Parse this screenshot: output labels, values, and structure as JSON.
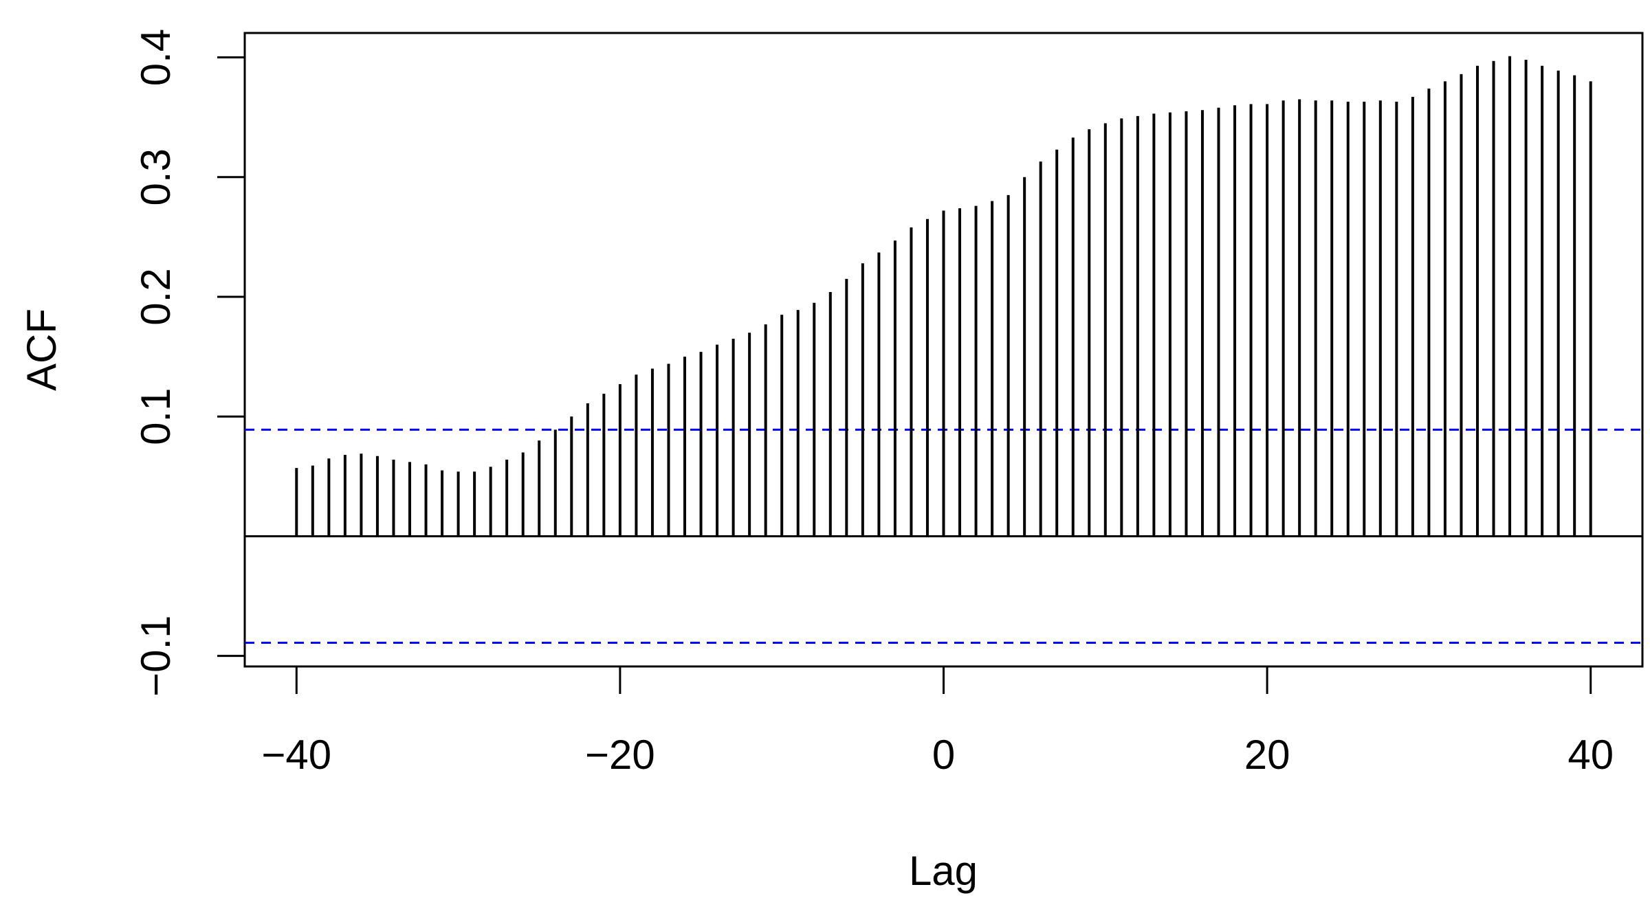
{
  "chart_data": {
    "type": "spike",
    "xlabel": "Lag",
    "ylabel": "ACF",
    "x": [
      -40,
      -39,
      -38,
      -37,
      -36,
      -35,
      -34,
      -33,
      -32,
      -31,
      -30,
      -29,
      -28,
      -27,
      -26,
      -25,
      -24,
      -23,
      -22,
      -21,
      -20,
      -19,
      -18,
      -17,
      -16,
      -15,
      -14,
      -13,
      -12,
      -11,
      -10,
      -9,
      -8,
      -7,
      -6,
      -5,
      -4,
      -3,
      -2,
      -1,
      0,
      1,
      2,
      3,
      4,
      5,
      6,
      7,
      8,
      9,
      10,
      11,
      12,
      13,
      14,
      15,
      16,
      17,
      18,
      19,
      20,
      21,
      22,
      23,
      24,
      25,
      26,
      27,
      28,
      29,
      30,
      31,
      32,
      33,
      34,
      35,
      36,
      37,
      38,
      39,
      40
    ],
    "values": [
      0.057,
      0.059,
      0.065,
      0.068,
      0.069,
      0.067,
      0.064,
      0.062,
      0.06,
      0.055,
      0.054,
      0.054,
      0.058,
      0.064,
      0.07,
      0.08,
      0.089,
      0.1,
      0.111,
      0.119,
      0.127,
      0.135,
      0.14,
      0.144,
      0.15,
      0.154,
      0.16,
      0.165,
      0.17,
      0.177,
      0.185,
      0.189,
      0.195,
      0.204,
      0.215,
      0.228,
      0.237,
      0.247,
      0.258,
      0.265,
      0.272,
      0.274,
      0.276,
      0.28,
      0.285,
      0.3,
      0.313,
      0.323,
      0.333,
      0.34,
      0.345,
      0.349,
      0.351,
      0.353,
      0.354,
      0.355,
      0.356,
      0.358,
      0.36,
      0.361,
      0.361,
      0.364,
      0.365,
      0.364,
      0.364,
      0.363,
      0.363,
      0.364,
      0.363,
      0.367,
      0.374,
      0.38,
      0.386,
      0.393,
      0.397,
      0.401,
      0.398,
      0.393,
      0.389,
      0.385,
      0.38
    ],
    "color": "#000000",
    "conf_limit": 0.089,
    "conf_color": "#0000ff",
    "xlim": [
      -43.2,
      43.2
    ],
    "xticks": [
      {
        "value": -40,
        "label": "−40"
      },
      {
        "value": -20,
        "label": "−20"
      },
      0,
      20,
      40
    ],
    "ylim": [
      -0.1088,
      0.4204
    ],
    "yticks": [
      {
        "value": -0.1,
        "label": "−0.1"
      },
      0.1,
      0.2,
      0.3,
      0.4
    ]
  }
}
